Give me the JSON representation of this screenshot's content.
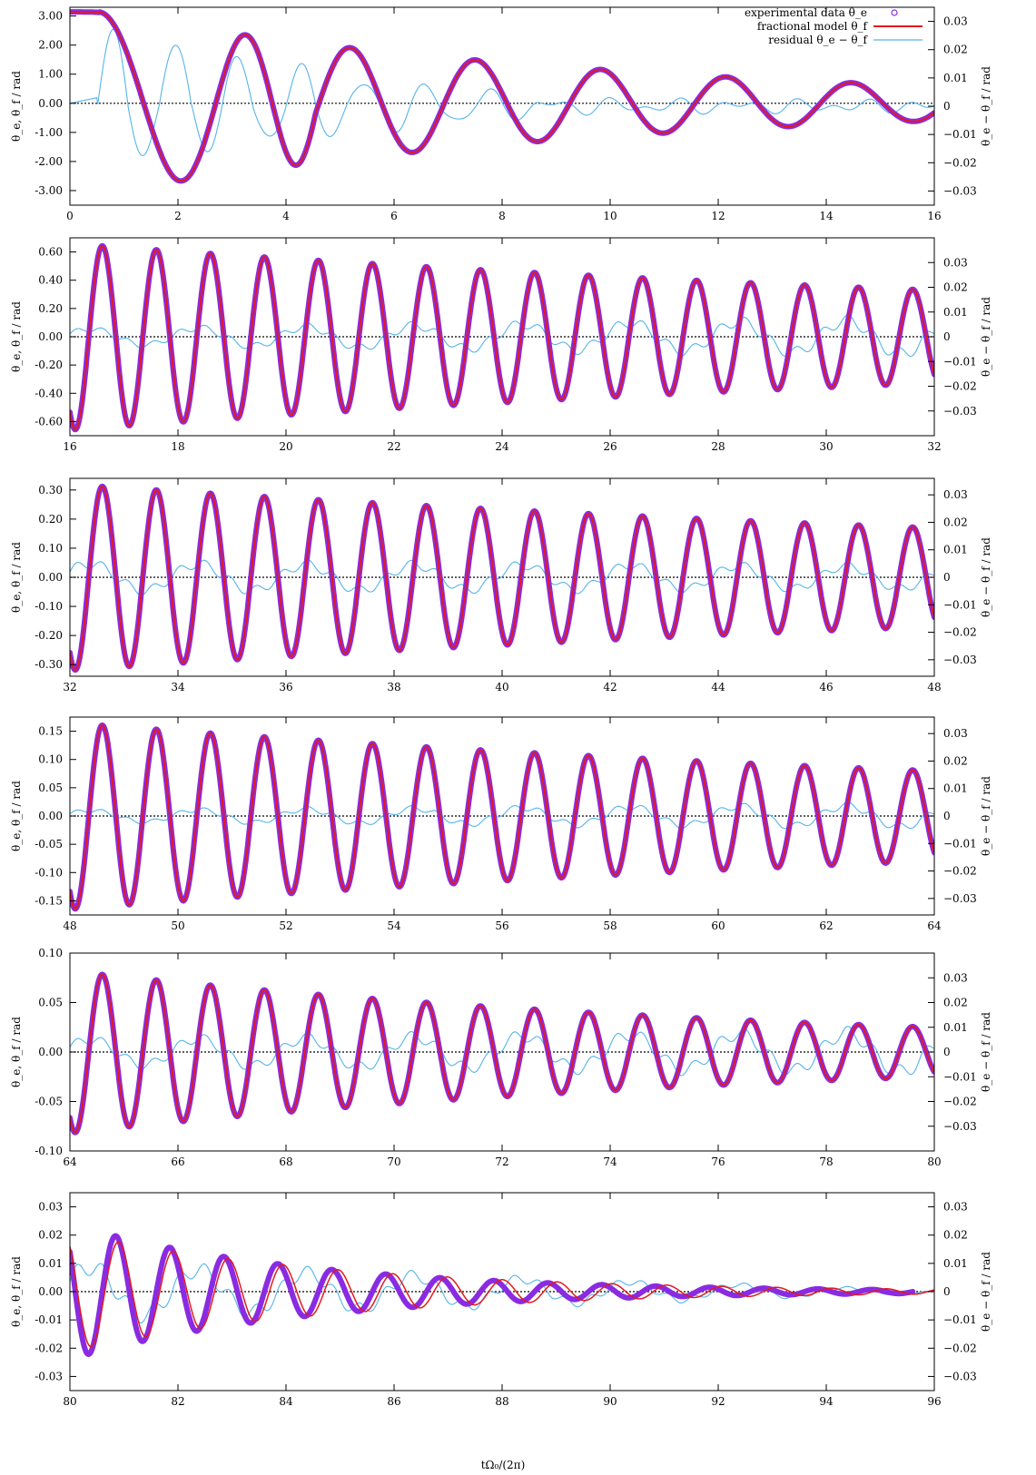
{
  "figure": {
    "xlabel": "tΩ₀/(2π)",
    "ylabel_left": "θ_e, θ_f / rad",
    "ylabel_right": "θ_e − θ_f / rad",
    "legend": {
      "experimental": "experimental data θ_e",
      "fractional": "fractional model θ_f",
      "residual": "residual θ_e − θ_f"
    },
    "colors": {
      "experimental": "#8a2be2",
      "fractional": "#e41a1c",
      "residual": "#56b4e9",
      "zero_line": "#000000"
    }
  },
  "chart_data": [
    {
      "type": "line",
      "panel": 1,
      "xlim": [
        0,
        16
      ],
      "xticks": [
        0,
        2,
        4,
        6,
        8,
        10,
        12,
        14,
        16
      ],
      "ylim": [
        -3.5,
        3.3
      ],
      "yticks": [
        "3.00",
        "2.00",
        "1.00",
        "0.00",
        "-1.00",
        "-2.00",
        "-3.00"
      ],
      "y2lim": [
        -0.035,
        0.035
      ],
      "y2ticks": [
        "0.03",
        "0.02",
        "0.01",
        "0",
        "−0.01",
        "−0.02",
        "−0.03"
      ],
      "signal": {
        "start": 3.14,
        "release": 0.7,
        "amplitudes": [
          3.14,
          2.4,
          2.16,
          1.9,
          1.8,
          1.66,
          1.58,
          1.49,
          1.42,
          1.32,
          1.27,
          1.2,
          1.15,
          1.06,
          1.03,
          0.97,
          0.92,
          0.85,
          0.82,
          0.78,
          0.73,
          0.68,
          0.64,
          0.58
        ]
      },
      "residual_peaks": [
        0.026,
        -0.017,
        0.023,
        -0.015,
        0.017,
        -0.012,
        0.014,
        -0.01,
        0.009,
        -0.008,
        0.007,
        -0.006,
        0.005,
        -0.004
      ]
    },
    {
      "type": "line",
      "panel": 2,
      "xlim": [
        16,
        32
      ],
      "xticks": [
        16,
        18,
        20,
        22,
        24,
        26,
        28,
        30,
        32
      ],
      "ylim": [
        -0.7,
        0.7
      ],
      "yticks": [
        "0.60",
        "0.40",
        "0.20",
        "0.00",
        "-0.20",
        "-0.40",
        "-0.60"
      ],
      "y2lim": [
        -0.04,
        0.04
      ],
      "y2ticks": [
        "0.03",
        "0.02",
        "0.01",
        "0",
        "−0.01",
        "−0.02",
        "−0.03"
      ],
      "amplitude_start": 0.66,
      "amplitude_end": 0.33,
      "residual_amplitude": [
        0.003,
        0.007
      ]
    },
    {
      "type": "line",
      "panel": 3,
      "xlim": [
        32,
        48
      ],
      "xticks": [
        32,
        34,
        36,
        38,
        40,
        42,
        44,
        46,
        48
      ],
      "ylim": [
        -0.34,
        0.34
      ],
      "yticks": [
        "0.30",
        "0.20",
        "0.10",
        "0.00",
        "-0.10",
        "-0.20",
        "-0.30"
      ],
      "y2lim": [
        -0.036,
        0.036
      ],
      "y2ticks": [
        "0.03",
        "0.02",
        "0.01",
        "0",
        "−0.01",
        "−0.02",
        "−0.03"
      ],
      "amplitude_start": 0.32,
      "amplitude_end": 0.17,
      "residual_amplitude": [
        0.005,
        0.004
      ]
    },
    {
      "type": "line",
      "panel": 4,
      "xlim": [
        48,
        64
      ],
      "xticks": [
        48,
        50,
        52,
        54,
        56,
        58,
        60,
        62,
        64
      ],
      "ylim": [
        -0.175,
        0.175
      ],
      "yticks": [
        "0.15",
        "0.10",
        "0.05",
        "0.00",
        "-0.05",
        "-0.10",
        "-0.15"
      ],
      "y2lim": [
        -0.036,
        0.036
      ],
      "y2ticks": [
        "0.03",
        "0.02",
        "0.01",
        "0",
        "−0.01",
        "−0.02",
        "−0.03"
      ],
      "amplitude_start": 0.165,
      "amplitude_end": 0.08,
      "residual_amplitude": [
        0.002,
        0.004
      ]
    },
    {
      "type": "line",
      "panel": 5,
      "xlim": [
        64,
        80
      ],
      "xticks": [
        64,
        66,
        68,
        70,
        72,
        74,
        76,
        78,
        80
      ],
      "ylim": [
        -0.1,
        0.1
      ],
      "yticks": [
        "0.10",
        "0.05",
        "0.00",
        "-0.05",
        "-0.10"
      ],
      "y2lim": [
        -0.04,
        0.04
      ],
      "y2ticks": [
        "0.03",
        "0.02",
        "0.01",
        "0",
        "−0.01",
        "−0.02",
        "−0.03"
      ],
      "amplitude_start": 0.082,
      "amplitude_end": 0.025,
      "residual_amplitude": [
        0.005,
        0.008
      ]
    },
    {
      "type": "line",
      "panel": 6,
      "xlim": [
        80,
        96
      ],
      "xticks": [
        80,
        82,
        84,
        86,
        88,
        90,
        92,
        94,
        96
      ],
      "ylim": [
        -0.035,
        0.035
      ],
      "yticks": [
        "0.03",
        "0.02",
        "0.01",
        "0.00",
        "-0.01",
        "-0.02",
        "-0.03"
      ],
      "y2lim": [
        -0.035,
        0.035
      ],
      "y2ticks": [
        "0.03",
        "0.02",
        "0.01",
        "0",
        "−0.01",
        "−0.02",
        "−0.03"
      ],
      "experimental_amplitude": [
        0.024,
        0.0
      ],
      "model_amplitude": [
        0.021,
        0.0
      ],
      "data_end": 95.6,
      "residual_amplitude": [
        0.009,
        0.0005
      ]
    }
  ]
}
